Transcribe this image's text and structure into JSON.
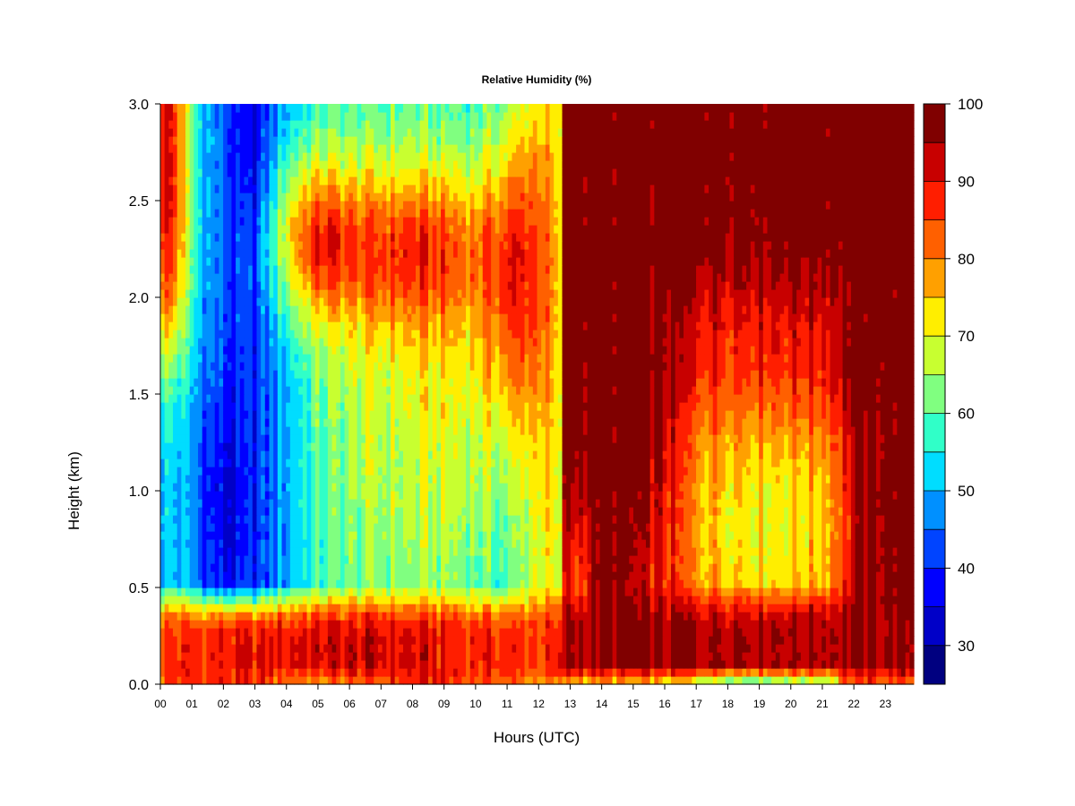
{
  "chart_data": {
    "type": "heatmap",
    "title": "Relative Humidity (%)",
    "xlabel": "Hours (UTC)",
    "ylabel": "Height (km)",
    "x_ticks": [
      "00",
      "01",
      "02",
      "03",
      "04",
      "05",
      "06",
      "07",
      "08",
      "09",
      "10",
      "11",
      "12",
      "13",
      "14",
      "15",
      "16",
      "17",
      "18",
      "19",
      "20",
      "21",
      "22",
      "23"
    ],
    "xlim": [
      0,
      23.9
    ],
    "y_ticks": [
      "0.0",
      "0.5",
      "1.0",
      "1.5",
      "2.0",
      "2.5",
      "3.0"
    ],
    "ylim": [
      0,
      3.0
    ],
    "colorbar": {
      "range": [
        25,
        100
      ],
      "step": 5,
      "labels": [
        "30",
        "40",
        "50",
        "60",
        "70",
        "80",
        "90",
        "100"
      ],
      "label_values": [
        30,
        40,
        50,
        60,
        70,
        80,
        90,
        100
      ],
      "colors": [
        "#000080",
        "#0000c8",
        "#0000ff",
        "#0044ff",
        "#0090ff",
        "#00ddff",
        "#30ffc8",
        "#80ff80",
        "#c8ff30",
        "#ffee00",
        "#ffa000",
        "#ff6000",
        "#ff1e00",
        "#c80000",
        "#800000"
      ]
    },
    "grid": false,
    "legend": "right"
  }
}
